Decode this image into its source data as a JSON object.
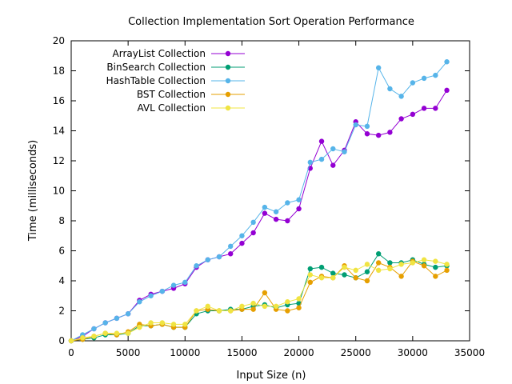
{
  "chart_data": {
    "type": "line",
    "title": "Collection Implementation Sort Operation Performance",
    "xlabel": "Input Size (n)",
    "ylabel": "Time (milliseconds)",
    "xlim": [
      0,
      35000
    ],
    "ylim": [
      0,
      20
    ],
    "xticks": [
      0,
      5000,
      10000,
      15000,
      20000,
      25000,
      30000,
      35000
    ],
    "yticks": [
      0,
      2,
      4,
      6,
      8,
      10,
      12,
      14,
      16,
      18,
      20
    ],
    "grid": false,
    "legend_position": "top-left",
    "x": [
      0,
      1000,
      2000,
      3000,
      4000,
      5000,
      6000,
      7000,
      8000,
      9000,
      10000,
      11000,
      12000,
      13000,
      14000,
      15000,
      16000,
      17000,
      18000,
      19000,
      20000,
      21000,
      22000,
      23000,
      24000,
      25000,
      26000,
      27000,
      28000,
      29000,
      30000,
      31000,
      32000,
      33000
    ],
    "series": [
      {
        "name": "ArrayList Collection",
        "color": "#9400d3",
        "values": [
          0.0,
          0.3,
          0.8,
          1.2,
          1.5,
          1.8,
          2.7,
          3.1,
          3.3,
          3.5,
          3.8,
          4.9,
          5.4,
          5.6,
          5.8,
          6.5,
          7.2,
          8.5,
          8.1,
          8.0,
          8.8,
          11.5,
          13.3,
          11.7,
          12.7,
          14.6,
          13.8,
          13.7,
          13.9,
          14.8,
          15.1,
          15.5,
          15.5,
          16.7
        ]
      },
      {
        "name": "BinSearch Collection",
        "color": "#009e73",
        "values": [
          0.0,
          0.1,
          0.2,
          0.4,
          0.4,
          0.5,
          1.0,
          1.0,
          1.1,
          0.9,
          0.9,
          1.8,
          2.0,
          2.0,
          2.1,
          2.1,
          2.3,
          2.4,
          2.2,
          2.4,
          2.5,
          4.8,
          4.9,
          4.5,
          4.4,
          4.2,
          4.6,
          5.8,
          5.2,
          5.2,
          5.4,
          5.1,
          4.9,
          5.0
        ]
      },
      {
        "name": "HashTable Collection",
        "color": "#56b4e9",
        "values": [
          0.0,
          0.4,
          0.8,
          1.2,
          1.5,
          1.8,
          2.6,
          3.0,
          3.3,
          3.7,
          3.9,
          5.0,
          5.4,
          5.6,
          6.3,
          7.0,
          7.9,
          8.9,
          8.6,
          9.2,
          9.4,
          11.9,
          12.1,
          12.8,
          12.6,
          14.4,
          14.3,
          18.2,
          16.8,
          16.3,
          17.2,
          17.5,
          17.7,
          18.6
        ]
      },
      {
        "name": "BST Collection",
        "color": "#e69f00",
        "values": [
          0.0,
          0.1,
          0.3,
          0.5,
          0.4,
          0.6,
          1.1,
          1.0,
          1.1,
          0.9,
          0.9,
          2.0,
          2.1,
          2.0,
          2.0,
          2.1,
          2.1,
          3.2,
          2.1,
          2.0,
          2.2,
          3.9,
          4.3,
          4.2,
          5.0,
          4.2,
          4.0,
          5.2,
          4.9,
          4.3,
          5.3,
          5.0,
          4.3,
          4.7
        ]
      },
      {
        "name": "AVL Collection",
        "color": "#f0e442",
        "values": [
          0.0,
          0.2,
          0.3,
          0.5,
          0.5,
          0.5,
          0.9,
          1.2,
          1.2,
          1.1,
          1.1,
          2.0,
          2.3,
          2.0,
          2.0,
          2.3,
          2.5,
          2.3,
          2.3,
          2.6,
          2.8,
          4.4,
          4.2,
          4.2,
          4.9,
          4.7,
          5.1,
          4.7,
          4.8,
          5.1,
          5.2,
          5.4,
          5.3,
          5.1
        ]
      }
    ]
  }
}
